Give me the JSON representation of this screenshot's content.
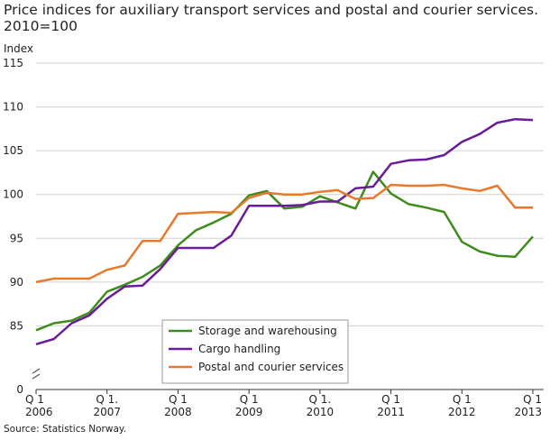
{
  "chart_data": {
    "type": "line",
    "title": "Price indices for auxiliary transport services and postal and courier services. 2010=100",
    "ylabel": "Index",
    "xlabel": "",
    "ylim": [
      0,
      115
    ],
    "y_ticks": [
      0,
      85,
      90,
      95,
      100,
      105,
      110,
      115
    ],
    "axis_break": true,
    "x_ticks": [
      {
        "line1": "Q 1",
        "line2": "2006",
        "q": 0
      },
      {
        "line1": "Q 1.",
        "line2": "2007",
        "q": 4
      },
      {
        "line1": "Q 1",
        "line2": "2008",
        "q": 8
      },
      {
        "line1": "Q 1",
        "line2": "2009",
        "q": 12
      },
      {
        "line1": "Q 1.",
        "line2": "2010",
        "q": 16
      },
      {
        "line1": "Q 1",
        "line2": "2011",
        "q": 20
      },
      {
        "line1": "Q 1",
        "line2": "2012",
        "q": 24
      },
      {
        "line1": "Q 1",
        "line2": "2013",
        "q": 28
      }
    ],
    "grid": true,
    "legend_position": "bottom-center",
    "series": [
      {
        "name": "Storage and warehousing",
        "color": "#3d8c1c",
        "values": [
          84.5,
          85.3,
          85.6,
          86.5,
          88.9,
          89.7,
          90.6,
          91.9,
          94.2,
          95.9,
          96.8,
          97.8,
          99.9,
          100.4,
          98.4,
          98.6,
          99.8,
          99.1,
          98.4,
          102.6,
          100.1,
          98.9,
          98.5,
          98.0,
          94.6,
          93.5,
          93.0,
          92.9,
          95.2
        ]
      },
      {
        "name": "Cargo handling",
        "color": "#6a1b9a",
        "values": [
          82.9,
          83.5,
          85.3,
          86.2,
          88.1,
          89.5,
          89.6,
          91.5,
          93.9,
          93.9,
          93.9,
          95.3,
          98.7,
          98.7,
          98.7,
          98.8,
          99.2,
          99.2,
          100.7,
          100.9,
          103.5,
          103.9,
          104.0,
          104.5,
          106.0,
          106.9,
          108.2,
          108.6,
          108.5
        ]
      },
      {
        "name": "Postal and courier services",
        "color": "#e8792b",
        "values": [
          90.0,
          90.4,
          90.4,
          90.4,
          91.4,
          91.9,
          94.7,
          94.7,
          97.8,
          97.9,
          98.0,
          97.9,
          99.6,
          100.2,
          100.0,
          100.0,
          100.3,
          100.5,
          99.5,
          99.6,
          101.1,
          101.0,
          101.0,
          101.1,
          100.7,
          100.4,
          101.0,
          98.5,
          98.5
        ]
      }
    ]
  },
  "source": "Source: Statistics Norway."
}
